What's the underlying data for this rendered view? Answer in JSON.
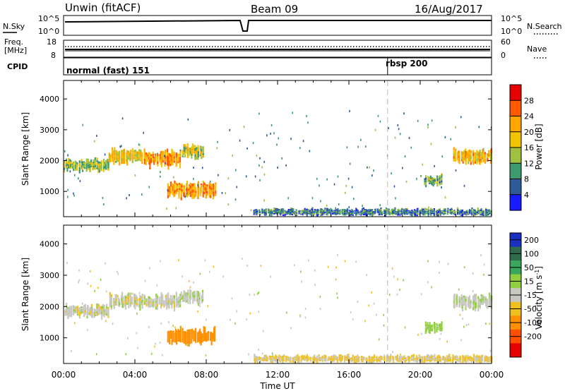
{
  "header": {
    "station": "Unwin (fitACF)",
    "beam": "Beam 09",
    "date": "16/Aug/2017"
  },
  "panels": {
    "nsky": {
      "left_label": "N.Sky",
      "right_label": "N.Search",
      "left_ticks": [
        "10^5",
        "10^0"
      ],
      "right_ticks": [
        "10^5",
        "10^0"
      ]
    },
    "freq": {
      "left_label_1": "Freq.",
      "left_label_2": "[MHz]",
      "right_label": "Nave",
      "left_ticks": [
        "18",
        "8"
      ],
      "right_ticks": [
        "60",
        "0"
      ]
    },
    "cpid": {
      "label": "CPID",
      "modes": [
        {
          "name": "normal (fast) 151",
          "start": "00:00"
        },
        {
          "name": "rbsp 200",
          "start": "18:10"
        }
      ]
    }
  },
  "time_axis": {
    "title": "Time UT",
    "ticks": [
      "00:00",
      "04:00",
      "08:00",
      "12:00",
      "16:00",
      "20:00",
      "00:00"
    ],
    "mode_change_hour": 18.17
  },
  "range_axis": {
    "title": "Slant Range [km]",
    "ticks": [
      "1000",
      "2000",
      "3000",
      "4000"
    ]
  },
  "power_scale": {
    "title": "Power [dB]",
    "labels": [
      "28",
      "24",
      "20",
      "16",
      "12",
      "8",
      "4"
    ],
    "colors": [
      "#e60000",
      "#ff5a00",
      "#ffa500",
      "#f2c300",
      "#a0c040",
      "#3c9a6e",
      "#2e5a9a",
      "#1a1aff"
    ]
  },
  "velocity_scale": {
    "title": "Velocity [m s",
    "title_sup": "-1",
    "title_end": "]",
    "labels": [
      "200",
      "100",
      "50",
      "15",
      "-15",
      "-50",
      "-100",
      "-200"
    ],
    "colors": [
      "#1a30c0",
      "#2f6a4a",
      "#3aa85a",
      "#90d040",
      "#c8c8c0",
      "#f0c020",
      "#ff9000",
      "#ff5000",
      "#e60000"
    ]
  },
  "chart_data": [
    {
      "type": "heatmap",
      "name": "Power",
      "xlabel": "Time UT",
      "ylabel": "Slant Range [km]",
      "xlim": [
        0,
        24
      ],
      "ylim": [
        180,
        4600
      ],
      "colorbar_label": "Power [dB]",
      "clim": [
        0,
        32
      ],
      "regions": [
        {
          "t_start": 0.0,
          "t_end": 2.5,
          "range_center": 1850,
          "range_halfwidth": 220,
          "value": 14
        },
        {
          "t_start": 2.5,
          "t_end": 4.5,
          "range_center": 2150,
          "range_halfwidth": 260,
          "value": 18
        },
        {
          "t_start": 4.5,
          "t_end": 6.5,
          "range_center": 2050,
          "range_halfwidth": 280,
          "value": 22
        },
        {
          "t_start": 6.5,
          "t_end": 7.8,
          "range_center": 2300,
          "range_halfwidth": 250,
          "value": 16
        },
        {
          "t_start": 5.8,
          "t_end": 8.5,
          "range_center": 1050,
          "range_halfwidth": 280,
          "value": 22
        },
        {
          "t_start": 10.6,
          "t_end": 24.0,
          "range_center": 330,
          "range_halfwidth": 130,
          "value": 8
        },
        {
          "t_start": 20.2,
          "t_end": 21.2,
          "range_center": 1350,
          "range_halfwidth": 200,
          "value": 12
        },
        {
          "t_start": 21.8,
          "t_end": 24.0,
          "range_center": 2150,
          "range_halfwidth": 250,
          "value": 20
        }
      ]
    },
    {
      "type": "heatmap",
      "name": "Velocity",
      "xlabel": "Time UT",
      "ylabel": "Slant Range [km]",
      "xlim": [
        0,
        24
      ],
      "ylim": [
        180,
        4600
      ],
      "colorbar_label": "Velocity [m s-1]",
      "clim": [
        -250,
        250
      ],
      "regions": [
        {
          "t_start": 0.0,
          "t_end": 2.5,
          "range_center": 1850,
          "range_halfwidth": 220,
          "value": 0
        },
        {
          "t_start": 2.5,
          "t_end": 6.5,
          "range_center": 2150,
          "range_halfwidth": 260,
          "value": 0
        },
        {
          "t_start": 6.5,
          "t_end": 7.8,
          "range_center": 2300,
          "range_halfwidth": 250,
          "value": 5
        },
        {
          "t_start": 5.8,
          "t_end": 8.5,
          "range_center": 1050,
          "range_halfwidth": 280,
          "value": -80
        },
        {
          "t_start": 10.6,
          "t_end": 24.0,
          "range_center": 330,
          "range_halfwidth": 130,
          "value": -20
        },
        {
          "t_start": 20.2,
          "t_end": 21.2,
          "range_center": 1350,
          "range_halfwidth": 200,
          "value": 30
        },
        {
          "t_start": 21.8,
          "t_end": 24.0,
          "range_center": 2150,
          "range_halfwidth": 250,
          "value": 5
        }
      ]
    }
  ]
}
